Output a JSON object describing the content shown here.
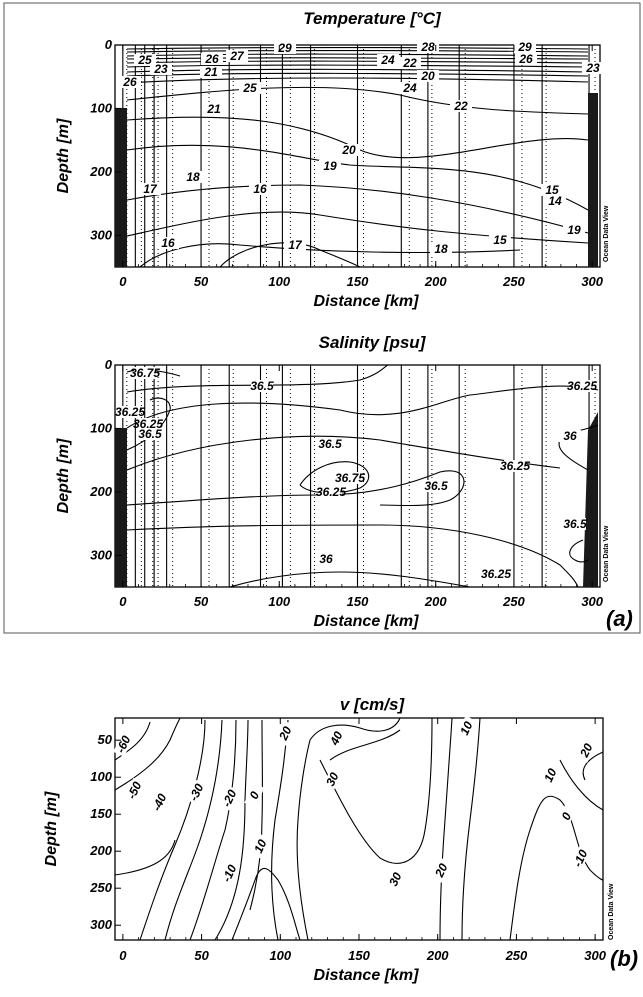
{
  "chart_data": [
    {
      "type": "contour",
      "title": "Temperature  [°C]",
      "xlabel": "Distance  [km]",
      "ylabel": "Depth  [m]",
      "xlim": [
        -5,
        305
      ],
      "ylim": [
        0,
        350
      ],
      "y_inverted": true,
      "xticks": [
        "0",
        "50",
        "100",
        "150",
        "200",
        "250",
        "300"
      ],
      "yticks": [
        "0",
        "100",
        "200",
        "300"
      ],
      "contour_labels": [
        "29",
        "28",
        "29",
        "27",
        "26",
        "25",
        "24",
        "23",
        "22",
        "21",
        "20",
        "26",
        "25",
        "24",
        "22",
        "21",
        "20",
        "19",
        "18",
        "17",
        "16",
        "15",
        "14",
        "15",
        "16",
        "17",
        "18",
        "19",
        "26",
        "23"
      ],
      "station_distances_km": [
        0,
        8,
        14,
        20,
        28,
        50,
        68,
        88,
        102,
        120,
        150,
        178,
        195,
        215,
        250,
        268,
        298
      ],
      "watermark": "Ocean Data View"
    },
    {
      "type": "contour",
      "title": "Salinity  [psu]",
      "xlabel": "Distance  [km]",
      "ylabel": "Depth  [m]",
      "xlim": [
        -5,
        305
      ],
      "ylim": [
        0,
        350
      ],
      "y_inverted": true,
      "xticks": [
        "0",
        "50",
        "100",
        "150",
        "200",
        "250",
        "300"
      ],
      "yticks": [
        "0",
        "100",
        "200",
        "300"
      ],
      "contour_labels": [
        "36.75",
        "36.5",
        "36.25",
        "36.5",
        "36.25",
        "36.75",
        "36.5",
        "36.5",
        "36.25",
        "36.25",
        "36",
        "36.25",
        "36.25",
        "36",
        "36.5"
      ],
      "station_distances_km": [
        0,
        8,
        14,
        20,
        28,
        50,
        68,
        88,
        102,
        120,
        150,
        178,
        195,
        215,
        250,
        268,
        298
      ],
      "watermark": "Ocean Data View",
      "panel_label": "(a)"
    },
    {
      "type": "contour",
      "title": "v  [cm/s]",
      "xlabel": "Distance  [km]",
      "ylabel": "Depth  [m]",
      "xlim": [
        -5,
        305
      ],
      "ylim": [
        20,
        320
      ],
      "y_inverted": true,
      "xticks": [
        "0",
        "50",
        "100",
        "150",
        "200",
        "250",
        "300"
      ],
      "yticks": [
        "50",
        "100",
        "150",
        "200",
        "250",
        "300"
      ],
      "contour_labels": [
        "-60",
        "-50",
        "-40",
        "-30",
        "-20",
        "0",
        "10",
        "-10",
        "20",
        "40",
        "30",
        "10",
        "30",
        "20",
        "10",
        "20",
        "0",
        "-10"
      ],
      "watermark": "Ocean Data View",
      "panel_label": "(b)"
    }
  ]
}
